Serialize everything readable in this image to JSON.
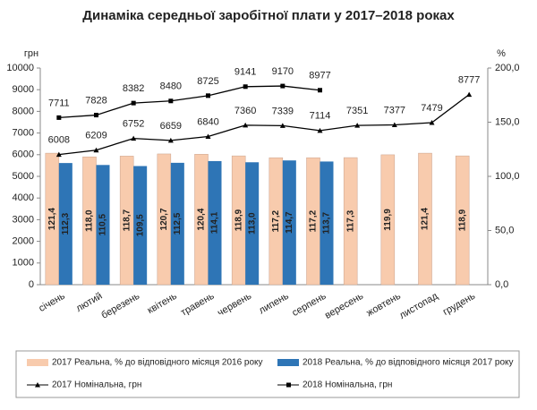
{
  "chart_data": {
    "type": "bar",
    "title": "Динаміка середньої заробітної плати у 2017–2018 роках",
    "y_label": "грн",
    "y2_label": "%",
    "categories": [
      "січень",
      "лютий",
      "березень",
      "квітень",
      "травень",
      "червень",
      "липень",
      "серпень",
      "вересень",
      "жовтень",
      "листопад",
      "грудень"
    ],
    "ylim": [
      0,
      10000
    ],
    "yticks": [
      0,
      1000,
      2000,
      3000,
      4000,
      5000,
      6000,
      7000,
      8000,
      9000,
      10000
    ],
    "y2lim": [
      0,
      200
    ],
    "y2ticks": [
      {
        "value": 0,
        "label": "0,0"
      },
      {
        "value": 50,
        "label": "50,0"
      },
      {
        "value": 100,
        "label": "100,0"
      },
      {
        "value": 150,
        "label": "150,0"
      },
      {
        "value": 200,
        "label": "200,0"
      }
    ],
    "series": [
      {
        "name": "2017 Реальна, % до відповідного місяця 2016 року",
        "type": "bar",
        "axis": "y2",
        "color": "#f8cbad",
        "values": [
          121.4,
          118.0,
          118.7,
          120.7,
          120.4,
          118.9,
          117.2,
          117.2,
          117.3,
          119.9,
          121.4,
          118.9
        ],
        "value_labels": [
          "121,4",
          "118,0",
          "118,7",
          "120,7",
          "120,4",
          "118,9",
          "117,2",
          "117,2",
          "117,3",
          "119,9",
          "121,4",
          "118,9"
        ]
      },
      {
        "name": "2018 Реальна, % до відповідного місяця 2017 року",
        "type": "bar",
        "axis": "y2",
        "color": "#2e75b6",
        "values": [
          112.3,
          110.5,
          109.5,
          112.5,
          114.1,
          113.0,
          114.7,
          113.7,
          null,
          null,
          null,
          null
        ],
        "value_labels": [
          "112,3",
          "110,5",
          "109,5",
          "112,5",
          "114,1",
          "113,0",
          "114,7",
          "113,7",
          null,
          null,
          null,
          null
        ]
      },
      {
        "name": "2017 Номінальна, грн",
        "type": "line",
        "marker": "triangle",
        "color": "#000000",
        "values": [
          6008,
          6209,
          6752,
          6659,
          6840,
          7360,
          7339,
          7114,
          7351,
          7377,
          7479,
          8777
        ]
      },
      {
        "name": "2018 Номінальна, грн",
        "type": "line",
        "marker": "square",
        "color": "#000000",
        "values": [
          7711,
          7828,
          8382,
          8480,
          8725,
          9141,
          9170,
          8977,
          null,
          null,
          null,
          null
        ]
      }
    ]
  }
}
